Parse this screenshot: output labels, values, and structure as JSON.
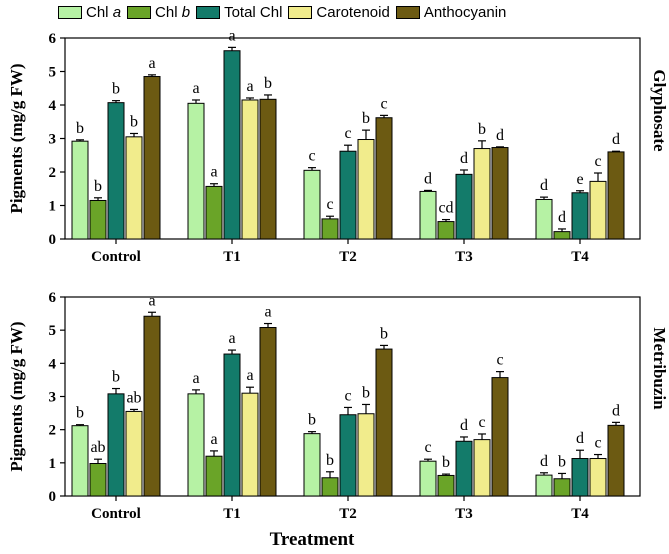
{
  "colors": {
    "chl_a": "#b6f2a4",
    "chl_b": "#6aa428",
    "total_chl": "#137b6a",
    "carotenoid": "#f1ec8c",
    "anthocyanin": "#6c5a12"
  },
  "legend": {
    "items": [
      {
        "prefix": "Chl ",
        "italic": "a"
      },
      {
        "prefix": "Chl ",
        "italic": "b"
      },
      {
        "prefix": "Total Chl",
        "italic": ""
      },
      {
        "prefix": "Carotenoid",
        "italic": ""
      },
      {
        "prefix": "Anthocyanin",
        "italic": ""
      }
    ]
  },
  "xlabel": "Treatment",
  "chart_data": [
    {
      "type": "bar",
      "panel_label": "Glyphosate",
      "ylabel": "Pigments (mg/g FW)",
      "ylim": [
        0,
        6
      ],
      "yticks": [
        "0",
        "1",
        "2",
        "3",
        "4",
        "5",
        "6"
      ],
      "categories": [
        "Control",
        "T1",
        "T2",
        "T3",
        "T4"
      ],
      "series": [
        {
          "name": "Chl a",
          "color_key": "chl_a",
          "values": [
            2.92,
            4.05,
            2.05,
            1.42,
            1.18
          ],
          "errors": [
            0.04,
            0.1,
            0.08,
            0.03,
            0.07
          ],
          "letters": [
            "b",
            "a",
            "c",
            "d",
            "d"
          ]
        },
        {
          "name": "Chl b",
          "color_key": "chl_b",
          "values": [
            1.15,
            1.57,
            0.6,
            0.52,
            0.22
          ],
          "errors": [
            0.08,
            0.08,
            0.08,
            0.06,
            0.08
          ],
          "letters": [
            "b",
            "a",
            "c",
            "cd",
            "d"
          ]
        },
        {
          "name": "Total Chl",
          "color_key": "total_chl",
          "values": [
            4.07,
            5.62,
            2.62,
            1.93,
            1.38
          ],
          "errors": [
            0.06,
            0.1,
            0.18,
            0.13,
            0.06
          ],
          "letters": [
            "b",
            "a",
            "c",
            "d",
            "e"
          ]
        },
        {
          "name": "Carotenoid",
          "color_key": "carotenoid",
          "values": [
            3.05,
            4.15,
            2.97,
            2.7,
            1.72
          ],
          "errors": [
            0.1,
            0.06,
            0.28,
            0.23,
            0.25
          ],
          "letters": [
            "b",
            "a",
            "b",
            "b",
            "c"
          ]
        },
        {
          "name": "Anthocyanin",
          "color_key": "anthocyanin",
          "values": [
            4.85,
            4.17,
            3.62,
            2.73,
            2.6
          ],
          "errors": [
            0.05,
            0.13,
            0.07,
            0.02,
            0.02
          ],
          "letters": [
            "a",
            "b",
            "c",
            "d",
            "d"
          ]
        }
      ]
    },
    {
      "type": "bar",
      "panel_label": "Metribuzin",
      "ylabel": "Pigments (mg/g FW)",
      "ylim": [
        0,
        6
      ],
      "yticks": [
        "0",
        "1",
        "2",
        "3",
        "4",
        "5",
        "6"
      ],
      "categories": [
        "Control",
        "T1",
        "T2",
        "T3",
        "T4"
      ],
      "series": [
        {
          "name": "Chl a",
          "color_key": "chl_a",
          "values": [
            2.12,
            3.08,
            1.88,
            1.05,
            0.63
          ],
          "errors": [
            0.03,
            0.12,
            0.06,
            0.06,
            0.07
          ],
          "letters": [
            "b",
            "a",
            "b",
            "c",
            "d"
          ]
        },
        {
          "name": "Chl b",
          "color_key": "chl_b",
          "values": [
            0.98,
            1.2,
            0.55,
            0.62,
            0.52
          ],
          "errors": [
            0.13,
            0.16,
            0.18,
            0.04,
            0.16
          ],
          "letters": [
            "ab",
            "a",
            "b",
            "b",
            "b"
          ]
        },
        {
          "name": "Total Chl",
          "color_key": "total_chl",
          "values": [
            3.08,
            4.28,
            2.45,
            1.65,
            1.13
          ],
          "errors": [
            0.16,
            0.12,
            0.22,
            0.13,
            0.25
          ],
          "letters": [
            "b",
            "a",
            "c",
            "d",
            "d"
          ]
        },
        {
          "name": "Carotenoid",
          "color_key": "carotenoid",
          "values": [
            2.55,
            3.1,
            2.48,
            1.7,
            1.13
          ],
          "errors": [
            0.06,
            0.18,
            0.28,
            0.17,
            0.12
          ],
          "letters": [
            "ab",
            "a",
            "b",
            "c",
            "c"
          ]
        },
        {
          "name": "Anthocyanin",
          "color_key": "anthocyanin",
          "values": [
            5.42,
            5.08,
            4.43,
            3.57,
            2.13
          ],
          "errors": [
            0.12,
            0.12,
            0.11,
            0.18,
            0.09
          ],
          "letters": [
            "a",
            "a",
            "b",
            "c",
            "d"
          ]
        }
      ]
    }
  ]
}
